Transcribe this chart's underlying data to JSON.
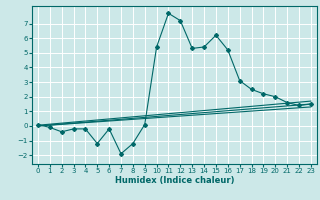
{
  "xlabel": "Humidex (Indice chaleur)",
  "bg_color": "#cce8e8",
  "grid_color": "#ffffff",
  "line_color": "#006868",
  "xlim": [
    -0.5,
    23.5
  ],
  "ylim": [
    -2.6,
    8.2
  ],
  "yticks": [
    -2,
    -1,
    0,
    1,
    2,
    3,
    4,
    5,
    6,
    7
  ],
  "xticks": [
    0,
    1,
    2,
    3,
    4,
    5,
    6,
    7,
    8,
    9,
    10,
    11,
    12,
    13,
    14,
    15,
    16,
    17,
    18,
    19,
    20,
    21,
    22,
    23
  ],
  "series1_x": [
    0,
    1,
    2,
    3,
    4,
    5,
    6,
    7,
    8,
    9,
    10,
    11,
    12,
    13,
    14,
    15,
    16,
    17,
    18,
    19,
    20,
    21,
    22,
    23
  ],
  "series1_y": [
    0.1,
    -0.1,
    -0.4,
    -0.2,
    -0.2,
    -1.2,
    -0.2,
    -1.9,
    -1.2,
    0.1,
    5.4,
    7.7,
    7.2,
    5.3,
    5.4,
    6.2,
    5.2,
    3.1,
    2.5,
    2.2,
    2.0,
    1.6,
    1.4,
    1.5
  ],
  "line2_x0": 0,
  "line2_x1": 23,
  "line2_y0": 0.0,
  "line2_y1": 1.3,
  "line3_x0": 0,
  "line3_x1": 23,
  "line3_y0": 0.0,
  "line3_y1": 1.5,
  "line4_x0": 0,
  "line4_x1": 23,
  "line4_y0": 0.05,
  "line4_y1": 1.7
}
